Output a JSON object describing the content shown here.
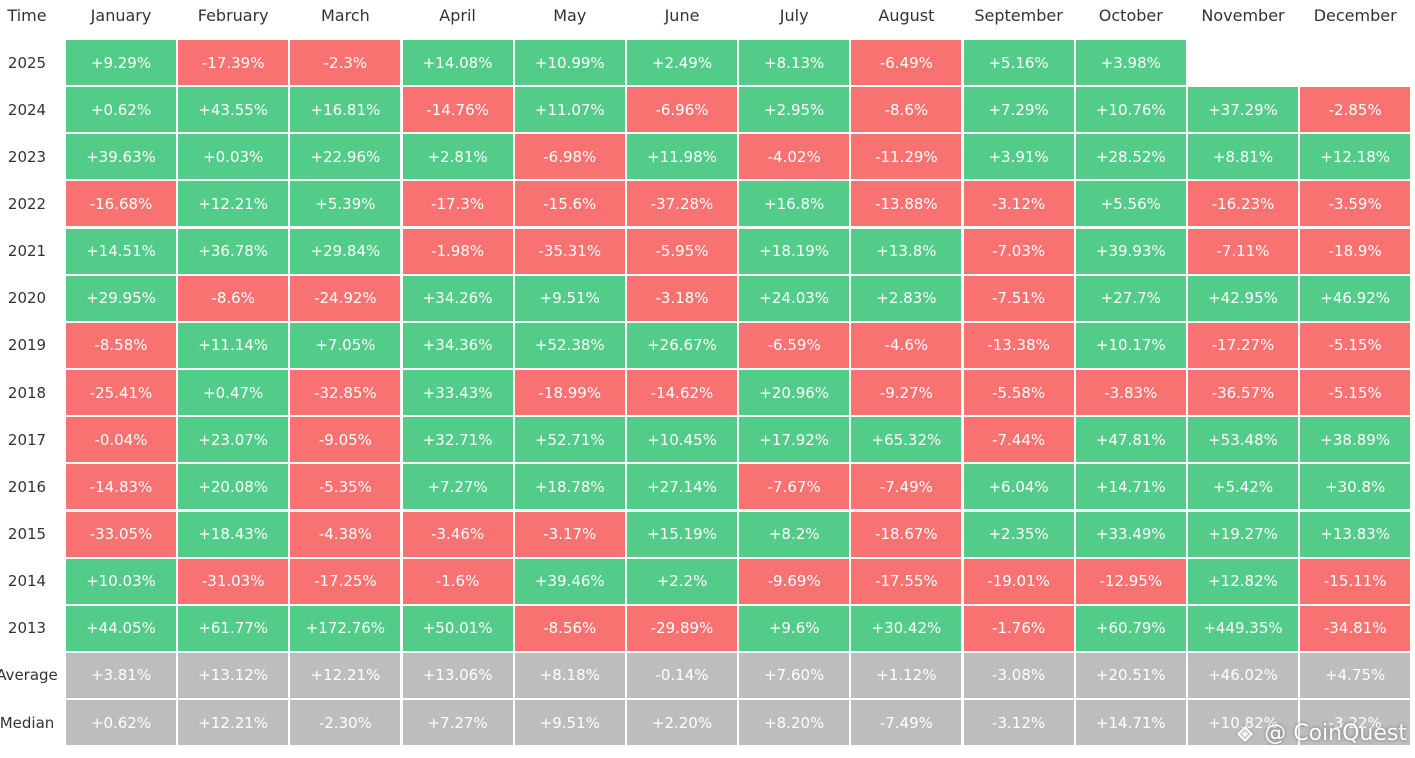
{
  "table": {
    "header": [
      "Time",
      "January",
      "February",
      "March",
      "April",
      "May",
      "June",
      "July",
      "August",
      "September",
      "October",
      "November",
      "December"
    ],
    "colors": {
      "positive": "#52cc88",
      "negative": "#f87272",
      "summary": "#bdbdbd"
    },
    "rows": [
      {
        "label": "2025",
        "cells": [
          "+9.29%",
          "-17.39%",
          "-2.3%",
          "+14.08%",
          "+10.99%",
          "+2.49%",
          "+8.13%",
          "-6.49%",
          "+5.16%",
          "+3.98%"
        ]
      },
      {
        "label": "2024",
        "cells": [
          "+0.62%",
          "+43.55%",
          "+16.81%",
          "-14.76%",
          "+11.07%",
          "-6.96%",
          "+2.95%",
          "-8.6%",
          "+7.29%",
          "+10.76%",
          "+37.29%",
          "-2.85%"
        ]
      },
      {
        "label": "2023",
        "cells": [
          "+39.63%",
          "+0.03%",
          "+22.96%",
          "+2.81%",
          "-6.98%",
          "+11.98%",
          "-4.02%",
          "-11.29%",
          "+3.91%",
          "+28.52%",
          "+8.81%",
          "+12.18%"
        ]
      },
      {
        "label": "2022",
        "cells": [
          "-16.68%",
          "+12.21%",
          "+5.39%",
          "-17.3%",
          "-15.6%",
          "-37.28%",
          "+16.8%",
          "-13.88%",
          "-3.12%",
          "+5.56%",
          "-16.23%",
          "-3.59%"
        ]
      },
      {
        "label": "2021",
        "cells": [
          "+14.51%",
          "+36.78%",
          "+29.84%",
          "-1.98%",
          "-35.31%",
          "-5.95%",
          "+18.19%",
          "+13.8%",
          "-7.03%",
          "+39.93%",
          "-7.11%",
          "-18.9%"
        ]
      },
      {
        "label": "2020",
        "cells": [
          "+29.95%",
          "-8.6%",
          "-24.92%",
          "+34.26%",
          "+9.51%",
          "-3.18%",
          "+24.03%",
          "+2.83%",
          "-7.51%",
          "+27.7%",
          "+42.95%",
          "+46.92%"
        ]
      },
      {
        "label": "2019",
        "cells": [
          "-8.58%",
          "+11.14%",
          "+7.05%",
          "+34.36%",
          "+52.38%",
          "+26.67%",
          "-6.59%",
          "-4.6%",
          "-13.38%",
          "+10.17%",
          "-17.27%",
          "-5.15%"
        ]
      },
      {
        "label": "2018",
        "cells": [
          "-25.41%",
          "+0.47%",
          "-32.85%",
          "+33.43%",
          "-18.99%",
          "-14.62%",
          "+20.96%",
          "-9.27%",
          "-5.58%",
          "-3.83%",
          "-36.57%",
          "-5.15%"
        ]
      },
      {
        "label": "2017",
        "cells": [
          "-0.04%",
          "+23.07%",
          "-9.05%",
          "+32.71%",
          "+52.71%",
          "+10.45%",
          "+17.92%",
          "+65.32%",
          "-7.44%",
          "+47.81%",
          "+53.48%",
          "+38.89%"
        ]
      },
      {
        "label": "2016",
        "cells": [
          "-14.83%",
          "+20.08%",
          "-5.35%",
          "+7.27%",
          "+18.78%",
          "+27.14%",
          "-7.67%",
          "-7.49%",
          "+6.04%",
          "+14.71%",
          "+5.42%",
          "+30.8%"
        ]
      },
      {
        "label": "2015",
        "cells": [
          "-33.05%",
          "+18.43%",
          "-4.38%",
          "-3.46%",
          "-3.17%",
          "+15.19%",
          "+8.2%",
          "-18.67%",
          "+2.35%",
          "+33.49%",
          "+19.27%",
          "+13.83%"
        ]
      },
      {
        "label": "2014",
        "cells": [
          "+10.03%",
          "-31.03%",
          "-17.25%",
          "-1.6%",
          "+39.46%",
          "+2.2%",
          "-9.69%",
          "-17.55%",
          "-19.01%",
          "-12.95%",
          "+12.82%",
          "-15.11%"
        ]
      },
      {
        "label": "2013",
        "cells": [
          "+44.05%",
          "+61.77%",
          "+172.76%",
          "+50.01%",
          "-8.56%",
          "-29.89%",
          "+9.6%",
          "+30.42%",
          "-1.76%",
          "+60.79%",
          "+449.35%",
          "-34.81%"
        ]
      }
    ],
    "summary_rows": [
      {
        "label": "Average",
        "cells": [
          "+3.81%",
          "+13.12%",
          "+12.21%",
          "+13.06%",
          "+8.18%",
          "-0.14%",
          "+7.60%",
          "+1.12%",
          "-3.08%",
          "+20.51%",
          "+46.02%",
          "+4.75%"
        ]
      },
      {
        "label": "Median",
        "cells": [
          "+0.62%",
          "+12.21%",
          "-2.30%",
          "+7.27%",
          "+9.51%",
          "+2.20%",
          "+8.20%",
          "-7.49%",
          "-3.12%",
          "+14.71%",
          "+10.82%",
          "-3.22%"
        ]
      }
    ]
  },
  "watermark": "@ CoinQuest"
}
